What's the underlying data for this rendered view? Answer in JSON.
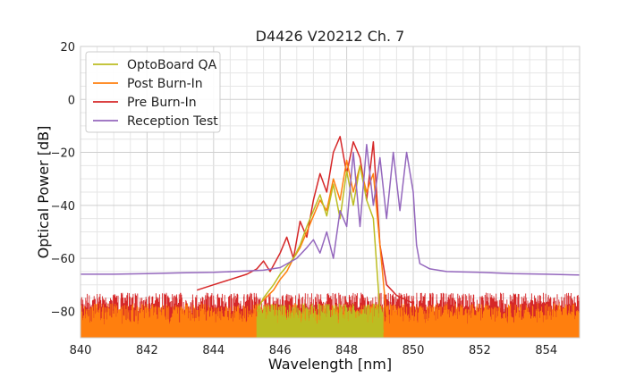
{
  "chart_data": {
    "type": "line",
    "title": "D4426 V20212 Ch. 7",
    "xlabel": "Wavelength [nm]",
    "ylabel": "Optical Power [dB]",
    "xlim": [
      840,
      855
    ],
    "ylim": [
      -90,
      20
    ],
    "xticks": [
      840,
      842,
      844,
      846,
      848,
      850,
      852,
      854
    ],
    "yticks": [
      20,
      0,
      -20,
      -40,
      -60,
      -80
    ],
    "xtick_labels": [
      "840",
      "842",
      "844",
      "846",
      "848",
      "850",
      "852",
      "854"
    ],
    "ytick_labels": [
      "20",
      "0",
      "−20",
      "−40",
      "−60",
      "−80"
    ],
    "grid": true,
    "legend_position": "top-left",
    "series": [
      {
        "name": "OptoBoard QA",
        "color": "#bcbd22",
        "noise_floor_range": [
          845.3,
          849.1
        ],
        "points": [
          [
            845.3,
            -80
          ],
          [
            845.5,
            -75
          ],
          [
            845.8,
            -70
          ],
          [
            846.0,
            -66
          ],
          [
            846.2,
            -63
          ],
          [
            846.4,
            -60
          ],
          [
            846.6,
            -55
          ],
          [
            846.8,
            -48
          ],
          [
            847.0,
            -42
          ],
          [
            847.2,
            -36
          ],
          [
            847.4,
            -44
          ],
          [
            847.6,
            -32
          ],
          [
            847.8,
            -45
          ],
          [
            848.0,
            -27
          ],
          [
            848.2,
            -40
          ],
          [
            848.4,
            -25
          ],
          [
            848.6,
            -38
          ],
          [
            848.8,
            -45
          ],
          [
            849.0,
            -80
          ],
          [
            849.1,
            -88
          ]
        ]
      },
      {
        "name": "Post Burn-In",
        "color": "#ff7f0e",
        "noise_floor_range": [
          840.0,
          855.0
        ],
        "points": [
          [
            845.4,
            -77
          ],
          [
            845.8,
            -72
          ],
          [
            846.0,
            -68
          ],
          [
            846.2,
            -65
          ],
          [
            846.4,
            -60
          ],
          [
            846.6,
            -56
          ],
          [
            846.8,
            -50
          ],
          [
            847.0,
            -44
          ],
          [
            847.2,
            -38
          ],
          [
            847.4,
            -42
          ],
          [
            847.6,
            -30
          ],
          [
            847.8,
            -38
          ],
          [
            848.0,
            -23
          ],
          [
            848.2,
            -35
          ],
          [
            848.4,
            -25
          ],
          [
            848.6,
            -35
          ],
          [
            848.8,
            -28
          ],
          [
            849.0,
            -55
          ],
          [
            849.2,
            -82
          ]
        ]
      },
      {
        "name": "Pre Burn-In",
        "color": "#d62728",
        "noise_floor_range": [
          840.0,
          855.0
        ],
        "points": [
          [
            843.5,
            -72
          ],
          [
            844.0,
            -70
          ],
          [
            844.5,
            -68
          ],
          [
            845.0,
            -66
          ],
          [
            845.3,
            -64
          ],
          [
            845.5,
            -61
          ],
          [
            845.7,
            -65
          ],
          [
            846.0,
            -58
          ],
          [
            846.2,
            -52
          ],
          [
            846.4,
            -60
          ],
          [
            846.6,
            -46
          ],
          [
            846.8,
            -52
          ],
          [
            847.0,
            -38
          ],
          [
            847.2,
            -28
          ],
          [
            847.4,
            -35
          ],
          [
            847.6,
            -20
          ],
          [
            847.8,
            -14
          ],
          [
            848.0,
            -28
          ],
          [
            848.2,
            -16
          ],
          [
            848.4,
            -22
          ],
          [
            848.6,
            -38
          ],
          [
            848.8,
            -16
          ],
          [
            849.0,
            -55
          ],
          [
            849.2,
            -70
          ],
          [
            849.5,
            -74
          ],
          [
            850.0,
            -77
          ]
        ]
      },
      {
        "name": "Reception Test",
        "color": "#9467bd",
        "points": [
          [
            840.0,
            -66
          ],
          [
            841.0,
            -66
          ],
          [
            842.0,
            -65.8
          ],
          [
            843.0,
            -65.5
          ],
          [
            844.0,
            -65.3
          ],
          [
            845.0,
            -64.8
          ],
          [
            845.5,
            -64.5
          ],
          [
            846.0,
            -63.5
          ],
          [
            846.5,
            -60
          ],
          [
            846.8,
            -56
          ],
          [
            847.0,
            -53
          ],
          [
            847.2,
            -58
          ],
          [
            847.4,
            -50
          ],
          [
            847.6,
            -60
          ],
          [
            847.8,
            -42
          ],
          [
            848.0,
            -48
          ],
          [
            848.2,
            -20
          ],
          [
            848.4,
            -48
          ],
          [
            848.6,
            -17
          ],
          [
            848.8,
            -40
          ],
          [
            849.0,
            -22
          ],
          [
            849.2,
            -45
          ],
          [
            849.4,
            -20
          ],
          [
            849.6,
            -42
          ],
          [
            849.8,
            -20
          ],
          [
            850.0,
            -35
          ],
          [
            850.1,
            -55
          ],
          [
            850.2,
            -62
          ],
          [
            850.5,
            -64
          ],
          [
            851.0,
            -65
          ],
          [
            852.0,
            -65.3
          ],
          [
            853.0,
            -65.8
          ],
          [
            854.0,
            -66
          ],
          [
            855.0,
            -66.3
          ]
        ]
      }
    ]
  }
}
